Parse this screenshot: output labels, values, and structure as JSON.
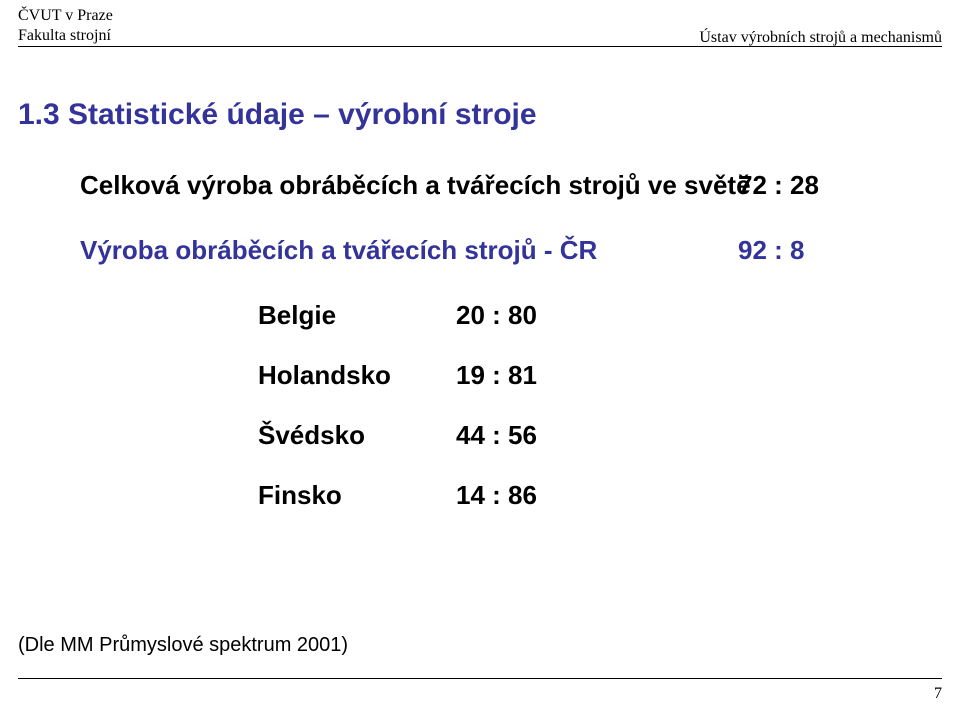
{
  "header": {
    "left_line1": "ČVUT v Praze",
    "left_line2": "Fakulta strojní",
    "right": "Ústav výrobních strojů a mechanismů"
  },
  "title": "1.3   Statistické údaje – výrobní stroje",
  "lines": {
    "world_label": "Celková výroba obráběcích a tvářecích strojů ve světě",
    "world_ratio": "72 : 28",
    "cr_label": "Výroba obráběcích a tvářecích strojů  - ČR",
    "cr_ratio": "92 : 8"
  },
  "countries": [
    {
      "name": "Belgie",
      "ratio": "20 : 80"
    },
    {
      "name": "Holandsko",
      "ratio": "19 : 81"
    },
    {
      "name": "Švédsko",
      "ratio": "44 : 56"
    },
    {
      "name": "Finsko",
      "ratio": "14 : 86"
    }
  ],
  "source": "(Dle MM Průmyslové spektrum 2001)",
  "page_number": "7",
  "colors": {
    "accent": "#333399",
    "text": "#000000",
    "background": "#ffffff",
    "rule": "#000000"
  },
  "fonts": {
    "header_family": "Garamond / serif",
    "body_family": "Arial",
    "title_size_pt": 22,
    "body_size_pt": 19,
    "header_size_pt": 12,
    "source_size_pt": 15
  }
}
